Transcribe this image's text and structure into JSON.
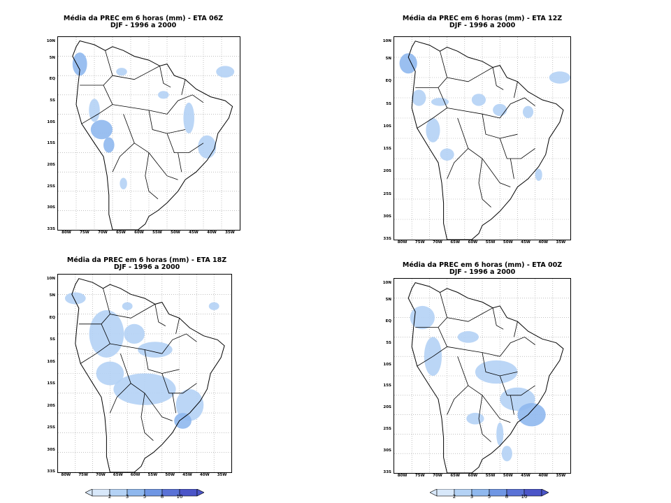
{
  "panels": [
    {
      "id": "06z",
      "title_line1": "Média da PREC em 6 horas (mm) - ETA 06Z",
      "title_line2": "DJF - 1996 a 2000"
    },
    {
      "id": "12z",
      "title_line1": "Média da PREC em 6 horas (mm) - ETA 12Z",
      "title_line2": "DJF - 1996 a 2000"
    },
    {
      "id": "18z",
      "title_line1": "Média da PREC em 6 horas (mm) - ETA 18Z",
      "title_line2": "DJF - 1996 a 2000"
    },
    {
      "id": "00z",
      "title_line1": "Média da PREC em 6 horas (mm) - ETA 00Z",
      "title_line2": "DJF - 1996 a 2000"
    }
  ],
  "lat_labels": [
    "10N",
    "5N",
    "EQ",
    "5S",
    "10S",
    "15S",
    "20S",
    "25S",
    "30S",
    "33S"
  ],
  "lon_labels": [
    "80W",
    "75W",
    "70W",
    "65W",
    "60W",
    "55W",
    "50W",
    "45W",
    "40W",
    "35W"
  ],
  "colorbar": {
    "labels": [
      "2",
      "3",
      "5",
      "8",
      "10"
    ],
    "colors": [
      "#d8e8fa",
      "#b4d2f5",
      "#8fb8ee",
      "#6f96e4",
      "#5a72d6",
      "#4b55c8"
    ]
  }
}
